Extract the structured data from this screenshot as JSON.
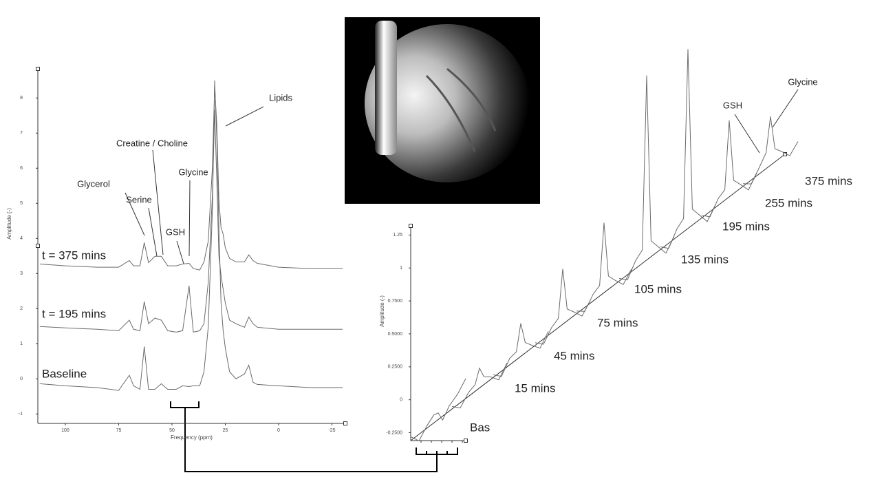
{
  "chart_data": [
    {
      "type": "line",
      "xlabel": "Frequency (ppm)",
      "ylabel": "Amplitude (-)",
      "xlim": [
        112.9,
        -31.3
      ],
      "ylim": [
        -1.27,
        8.83
      ],
      "xticks": [
        100,
        75,
        50,
        25,
        0,
        -25
      ],
      "yticks": [
        -1,
        0,
        1,
        2,
        3,
        4,
        5,
        6,
        7,
        8
      ],
      "x": [
        112,
        100,
        85,
        75,
        70,
        68,
        65,
        63,
        61,
        58,
        55,
        52,
        48,
        45,
        42,
        40,
        37,
        35,
        33,
        31,
        30,
        29,
        28,
        27,
        26,
        25,
        23,
        20,
        16,
        14,
        12,
        10,
        0,
        -15,
        -30
      ],
      "series": [
        {
          "name": "Baseline",
          "color": "#6a6a6a",
          "values": [
            -0.14,
            -0.2,
            -0.25,
            -0.33,
            0.1,
            -0.2,
            -0.3,
            0.92,
            -0.3,
            -0.3,
            -0.14,
            -0.3,
            -0.3,
            -0.2,
            -0.22,
            -0.2,
            -0.2,
            0.2,
            1.47,
            4.9,
            8.5,
            6.9,
            4.3,
            2.16,
            1.37,
            0.88,
            0.2,
            0,
            0.14,
            0.39,
            -0.1,
            -0.16,
            -0.2,
            -0.25,
            -0.25
          ]
        },
        {
          "name": "t = 195 mins",
          "color": "#6a6a6a",
          "values": [
            1.49,
            1.45,
            1.41,
            1.37,
            1.67,
            1.41,
            1.37,
            2.2,
            1.57,
            1.73,
            1.67,
            1.37,
            1.33,
            1.37,
            2.65,
            1.33,
            1.37,
            1.57,
            2.75,
            5.3,
            7.65,
            5.7,
            3.5,
            2.94,
            2.55,
            2.16,
            1.67,
            1.57,
            1.47,
            1.76,
            1.57,
            1.47,
            1.41,
            1.41,
            1.41
          ]
        },
        {
          "name": "t = 375 mins",
          "color": "#6a6a6a",
          "values": [
            3.27,
            3.22,
            3.18,
            3.18,
            3.37,
            3.22,
            3.22,
            3.88,
            3.31,
            3.49,
            3.49,
            3.22,
            3.22,
            3.27,
            3.29,
            3.14,
            3.1,
            3.33,
            3.92,
            6.08,
            8.33,
            7.25,
            5.1,
            4.31,
            4.12,
            3.73,
            3.43,
            3.33,
            3.33,
            3.53,
            3.37,
            3.29,
            3.18,
            3.14,
            3.14
          ]
        }
      ],
      "annotations": [
        "Lipids",
        "Creatine / Choline",
        "Glycerol",
        "Serine",
        "GSH",
        "Glycine"
      ]
    },
    {
      "type": "waterfall",
      "ylabel": "Amplitude (-)",
      "ylim": [
        -0.31,
        1.32
      ],
      "yticks": [
        {
          "value": -0.25,
          "label": "-0.2500"
        },
        0,
        {
          "value": 0.25,
          "label": "0.2500"
        },
        {
          "value": 0.5,
          "label": "0.5000"
        },
        {
          "value": 0.75,
          "label": "0.7500"
        },
        1,
        1.25
      ],
      "series": [
        {
          "name": "Bas",
          "color": "#6a6a6a",
          "values": [
            0.03,
            -0.05,
            0.02,
            0.06,
            0.05,
            -0.03,
            0.04,
            0.08,
            0.15
          ]
        },
        {
          "name": "15 mins",
          "color": "#6a6a6a",
          "values": [
            0.02,
            -0.04,
            0.03,
            0.05,
            0.15,
            0.06,
            0.02,
            -0.05,
            0.03
          ]
        },
        {
          "name": "45 mins",
          "color": "#6a6a6a",
          "values": [
            0.02,
            -0.04,
            0.05,
            0.06,
            0.25,
            0.08,
            0.02,
            -0.05,
            0.03
          ]
        },
        {
          "name": "75 mins",
          "color": "#6a6a6a",
          "values": [
            0.02,
            -0.04,
            0.04,
            0.07,
            0.42,
            0.09,
            0.03,
            -0.05,
            0.02
          ]
        },
        {
          "name": "105 mins",
          "color": "#6a6a6a",
          "values": [
            0.02,
            -0.03,
            0.05,
            0.08,
            0.53,
            0.1,
            0.03,
            -0.05,
            0.02
          ]
        },
        {
          "name": "135 mins",
          "color": "#6a6a6a",
          "values": [
            0.02,
            -0.04,
            0.06,
            0.1,
            1.4,
            0.12,
            0.04,
            -0.06,
            0.02
          ]
        },
        {
          "name": "195 mins",
          "color": "#6a6a6a",
          "values": [
            0.02,
            -0.04,
            0.06,
            0.1,
            1.36,
            0.12,
            0.04,
            -0.06,
            0.02
          ]
        },
        {
          "name": "255 mins",
          "color": "#6a6a6a",
          "values": [
            0.02,
            -0.04,
            0.05,
            0.08,
            0.58,
            0.1,
            0.03,
            -0.06,
            0.02
          ]
        },
        {
          "name": "375 mins",
          "color": "#6a6a6a",
          "values": [
            0.02,
            -0.03,
            0.05,
            0.12,
            0.37,
            0.1,
            0.04,
            -0.04,
            0.02
          ]
        }
      ],
      "annotations": [
        "GSH",
        "Glycine"
      ]
    }
  ]
}
